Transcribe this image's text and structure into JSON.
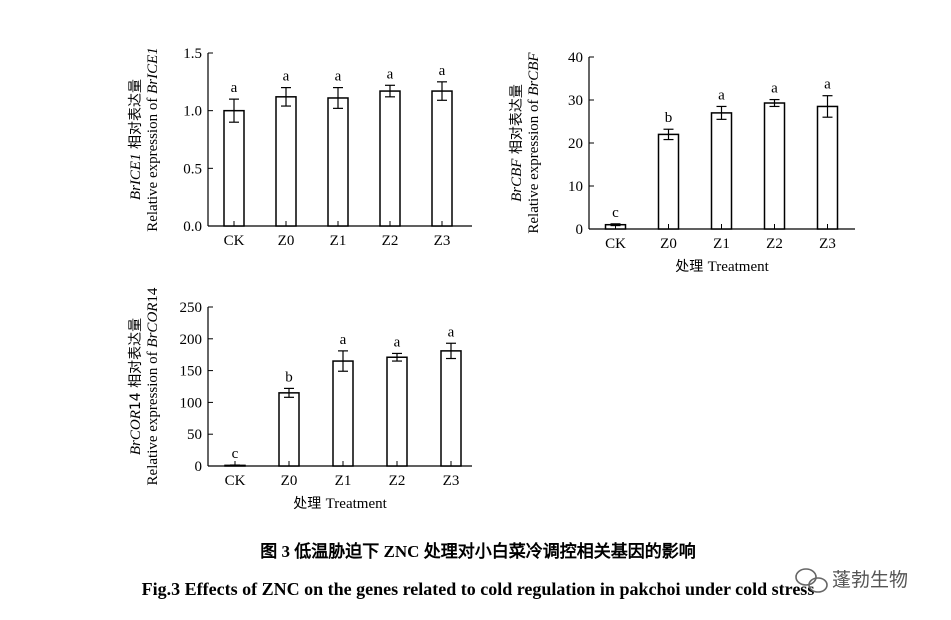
{
  "chart_data": [
    {
      "type": "bar",
      "categories": [
        "CK",
        "Z0",
        "Z1",
        "Z2",
        "Z3"
      ],
      "values": [
        1.0,
        1.12,
        1.11,
        1.17,
        1.17
      ],
      "errors": [
        0.1,
        0.08,
        0.09,
        0.05,
        0.08
      ],
      "letters": [
        "a",
        "a",
        "a",
        "a",
        "a"
      ],
      "ylabel_line1_italic": "BrICE1",
      "ylabel_line1_rest": " 相对表达量",
      "ylabel_line2": "Relative expression of ",
      "ylabel_line2_italic": "BrICE1",
      "xlabel": "",
      "ylim": [
        0,
        1.5
      ],
      "yticks": [
        "0.0",
        "0.5",
        "1.0",
        "1.5"
      ]
    },
    {
      "type": "bar",
      "categories": [
        "CK",
        "Z0",
        "Z1",
        "Z2",
        "Z3"
      ],
      "values": [
        1.0,
        22.0,
        27.0,
        29.3,
        28.5
      ],
      "errors": [
        0.2,
        1.2,
        1.5,
        0.8,
        2.5
      ],
      "letters": [
        "c",
        "b",
        "a",
        "a",
        "a"
      ],
      "ylabel_line1_italic": "BrCBF",
      "ylabel_line1_rest": " 相对表达量",
      "ylabel_line2": "Relative expression of ",
      "ylabel_line2_italic": "BrCBF",
      "xlabel": "处理  Treatment",
      "ylim": [
        0,
        40
      ],
      "yticks": [
        "0",
        "10",
        "20",
        "30",
        "40"
      ]
    },
    {
      "type": "bar",
      "categories": [
        "CK",
        "Z0",
        "Z1",
        "Z2",
        "Z3"
      ],
      "values": [
        1.0,
        115.0,
        165.0,
        171.0,
        181.0
      ],
      "errors": [
        0.5,
        7.0,
        16.0,
        6.0,
        12.0
      ],
      "letters": [
        "c",
        "b",
        "a",
        "a",
        "a"
      ],
      "ylabel_line1_italic": "BrCOR",
      "ylabel_line1_rest": "14 相对表达量",
      "ylabel_line2": "Relative expression of ",
      "ylabel_line2_italic": "BrCOR",
      "ylabel_line2_rest": "14",
      "xlabel": "处理  Treatment",
      "ylim": [
        0,
        250
      ],
      "yticks": [
        "0",
        "50",
        "100",
        "150",
        "200",
        "250"
      ]
    }
  ],
  "caption": {
    "zh": "图 3   低温胁迫下 ZNC 处理对小白菜冷调控相关基因的影响",
    "en": "Fig.3   Effects of ZNC on the genes related to cold regulation in pakchoi under cold stress"
  },
  "watermark": "蓬勃生物"
}
